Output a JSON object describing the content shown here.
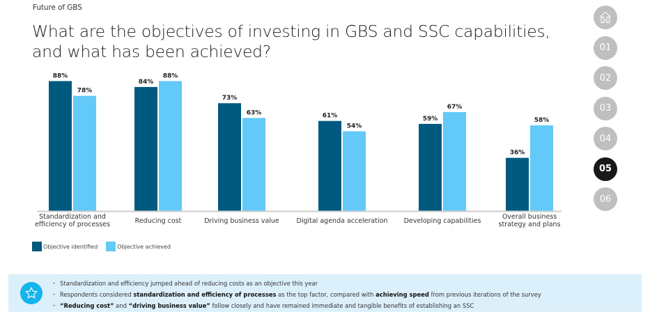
{
  "header": {
    "kicker": "Future of GBS",
    "title": "What are the objectives of investing in GBS and SSC capabilities, and what has been achieved?"
  },
  "nav": {
    "items": [
      {
        "label": "",
        "icon": "home-icon",
        "active": false
      },
      {
        "label": "01",
        "active": false
      },
      {
        "label": "02",
        "active": false
      },
      {
        "label": "03",
        "active": false
      },
      {
        "label": "04",
        "active": false
      },
      {
        "label": "05",
        "active": true
      },
      {
        "label": "06",
        "active": false
      }
    ]
  },
  "colors": {
    "identified": "#005a80",
    "achieved": "#62c9f8",
    "callout_bg": "#dcf0fb",
    "star_circle": "#14b4ec",
    "axis": "#cccccc"
  },
  "chart_data": {
    "type": "bar",
    "title": "",
    "xlabel": "",
    "ylabel": "",
    "ylim": [
      0,
      100
    ],
    "grid": false,
    "legend_position": "bottom-left",
    "value_suffix": "%",
    "categories": [
      [
        "Standardization and",
        "efficiency of processes"
      ],
      [
        "Reducing cost"
      ],
      [
        "Driving business value"
      ],
      [
        "Digital agenda acceleration"
      ],
      [
        "Developing capabilities"
      ],
      [
        "Overall business",
        "strategy and plans"
      ]
    ],
    "series": [
      {
        "name": "Objective identified",
        "values": [
          88,
          84,
          73,
          61,
          59,
          36
        ]
      },
      {
        "name": "Objective achieved",
        "values": [
          78,
          88,
          63,
          54,
          67,
          58
        ]
      }
    ]
  },
  "legend": {
    "items": [
      "Objective identified",
      "Objective achieved"
    ]
  },
  "callout": {
    "icon": "star-icon",
    "bullets": [
      [
        {
          "t": "Standardization and efficiency jumped ahead of reducing costs as an objective this year",
          "b": false
        }
      ],
      [
        {
          "t": "Respondents considered ",
          "b": false
        },
        {
          "t": "standardization and efficiency of processes",
          "b": true
        },
        {
          "t": " as the top factor, compared with ",
          "b": false
        },
        {
          "t": "achieving speed",
          "b": true
        },
        {
          "t": " from previous iterations of the survey",
          "b": false
        }
      ],
      [
        {
          "t": "“Reducing cost”",
          "b": true
        },
        {
          "t": " and ",
          "b": false
        },
        {
          "t": "“driving business value”",
          "b": true
        },
        {
          "t": " follow closely and have remained immediate and tangible benefits of establishing an SSC",
          "b": false
        }
      ]
    ]
  }
}
